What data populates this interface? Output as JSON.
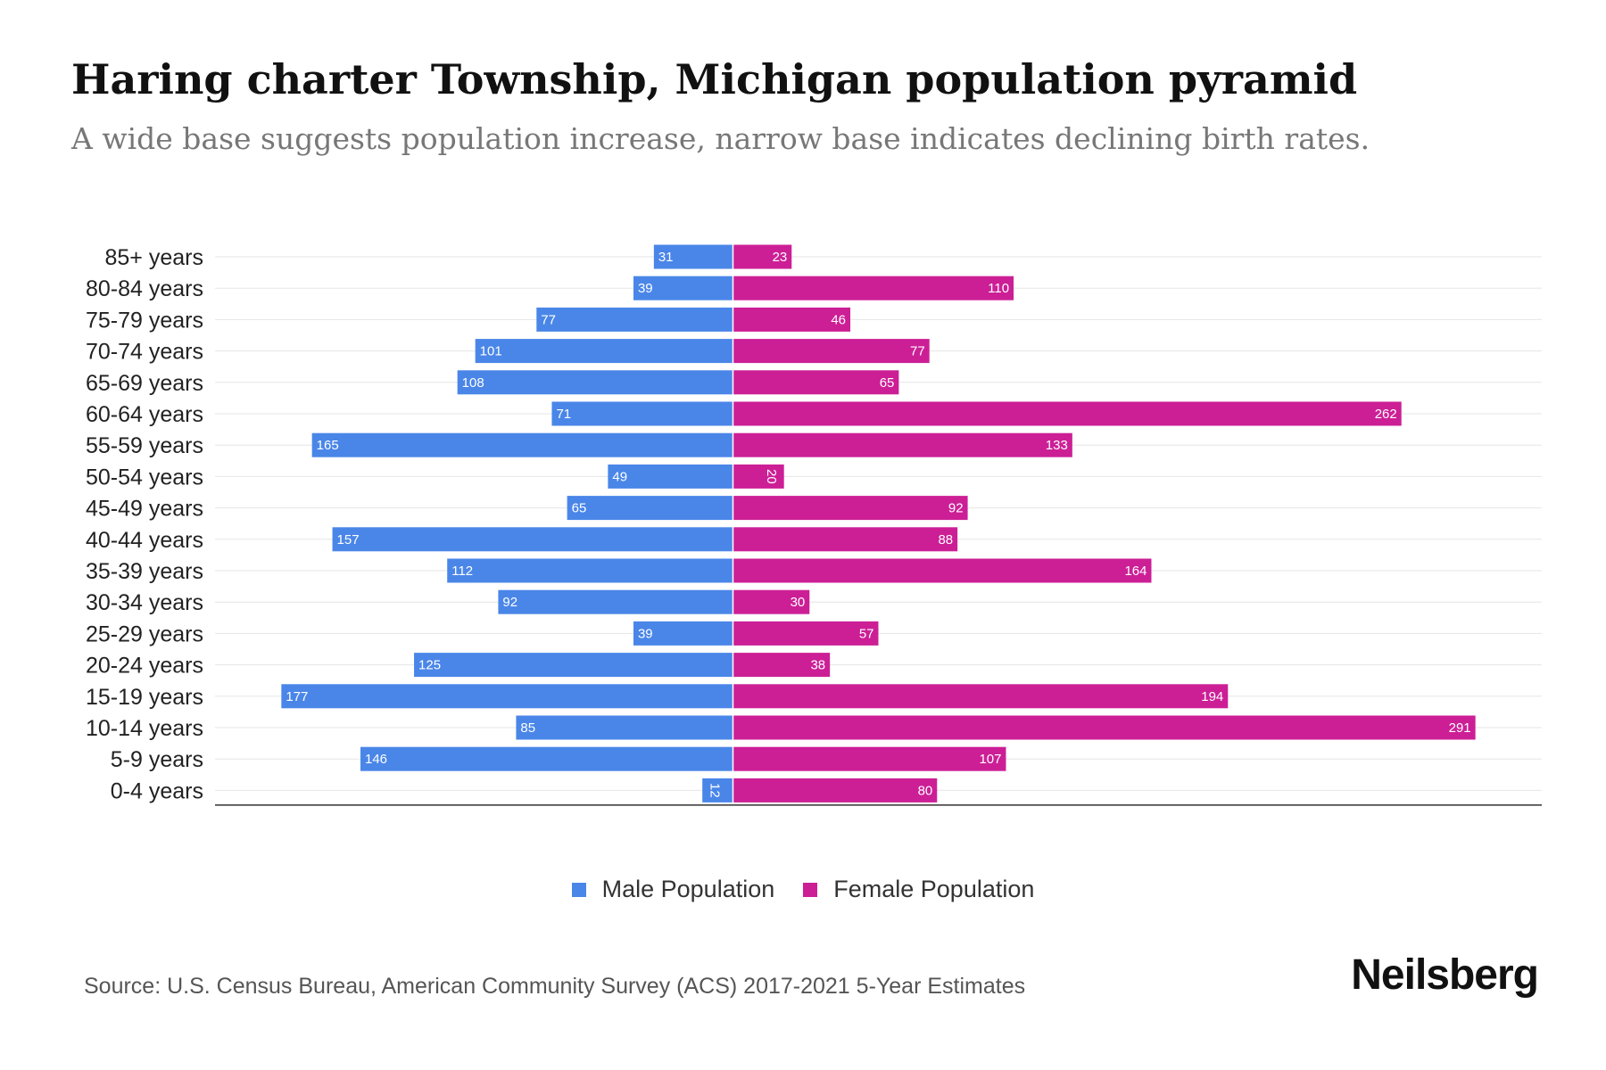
{
  "title": "Haring charter Township, Michigan population pyramid",
  "subtitle": "A wide base suggests population increase, narrow base indicates declining birth rates.",
  "legend": {
    "male": "Male Population",
    "female": "Female Population"
  },
  "source": "Source: U.S. Census Bureau, American Community Survey (ACS) 2017-2021 5-Year Estimates",
  "brand": "Neilsberg",
  "colors": {
    "male": "#4a86e8",
    "female": "#cc1f96",
    "gridline": "#e6e6e6",
    "axis": "#333333"
  },
  "chart_data": {
    "type": "bar",
    "orientation": "horizontal-pyramid",
    "categories": [
      "85+ years",
      "80-84 years",
      "75-79 years",
      "70-74 years",
      "65-69 years",
      "60-64 years",
      "55-59 years",
      "50-54 years",
      "45-49 years",
      "40-44 years",
      "35-39 years",
      "30-34 years",
      "25-29 years",
      "20-24 years",
      "15-19 years",
      "10-14 years",
      "5-9 years",
      "0-4 years"
    ],
    "series": [
      {
        "name": "Male Population",
        "values": [
          31,
          39,
          77,
          101,
          108,
          71,
          165,
          49,
          65,
          157,
          112,
          92,
          39,
          125,
          177,
          85,
          146,
          12
        ]
      },
      {
        "name": "Female Population",
        "values": [
          23,
          110,
          46,
          77,
          65,
          262,
          133,
          20,
          92,
          88,
          164,
          30,
          57,
          38,
          194,
          291,
          107,
          80
        ]
      }
    ],
    "xlim": [
      -203,
      317
    ],
    "grid": true,
    "legend_position": "bottom-center"
  }
}
